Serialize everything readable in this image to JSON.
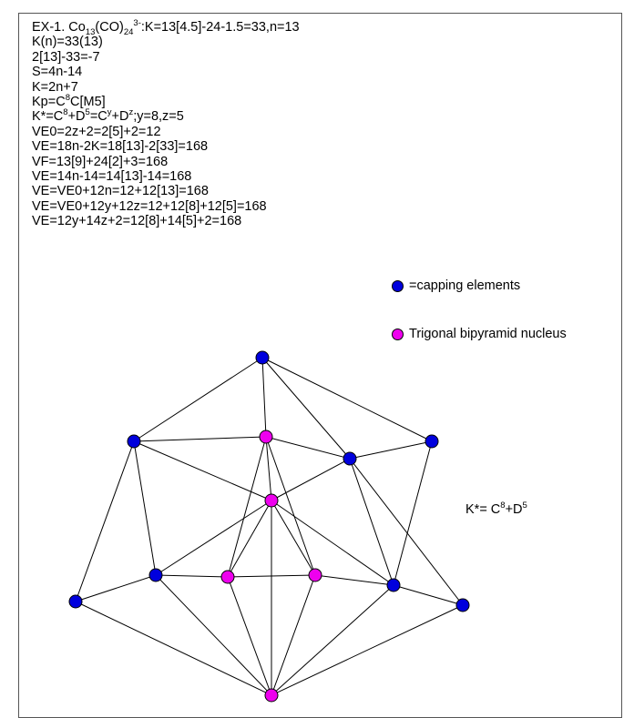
{
  "text": {
    "line0_pre": "EX-1. Co",
    "line0_sub1": "13",
    "line0_mid": "(CO)",
    "line0_sub2": "24",
    "line0_sup": "3-",
    "line0_post": ":K=13[4.5]-24-1.5=33,n=13",
    "line1": "K(n)=33(13)",
    "line2": "2[13]-33=-7",
    "line3": "S=4n-14",
    "line4": "K=2n+7",
    "line5_pre": "Kp=C",
    "line5_sup": "8",
    "line5_post": "C[M5]",
    "line6_a": "K*=C",
    "line6_s1": "8",
    "line6_b": "+D",
    "line6_s2": "5",
    "line6_c": "=C",
    "line6_s3": "y",
    "line6_d": "+D",
    "line6_s4": "z",
    "line6_e": ";y=8,z=5",
    "line7": "VE0=2z+2=2[5]+2=12",
    "line8": "VE=18n-2K=18[13]-2[33]=168",
    "line9": "VF=13[9]+24[2]+3=168",
    "line10": "VE=14n-14=14[13]-14=168",
    "line11": "VE=VE0+12n=12+12[13]=168",
    "line12": "VE=VE0+12y+12z=12+12[8]+12[5]=168",
    "line13": "VE=12y+14z+2=12[8]+14[5]+2=168"
  },
  "legend": {
    "capping": "=capping elements",
    "nucleus": "Trigonal bipyramid nucleus"
  },
  "kstar": {
    "pre": "K*= C",
    "s1": "8",
    "mid": "+D",
    "s2": "5"
  },
  "colors": {
    "capping": "#0000dd",
    "nucleus": "#ee00ee",
    "edge": "#000000"
  }
}
